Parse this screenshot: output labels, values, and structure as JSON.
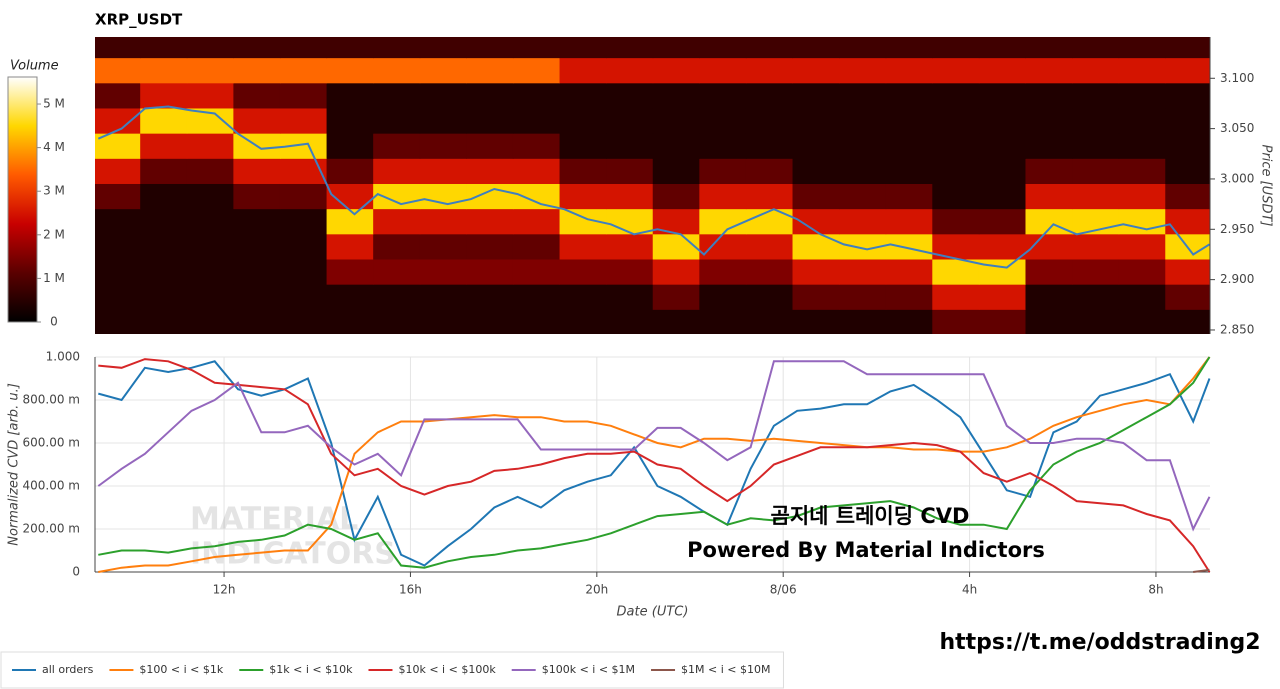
{
  "chart_data": [
    {
      "type": "heatmap",
      "title": "XRP_USDT",
      "y_label": "Price [USDT]",
      "colorbar_label": "Volume",
      "xlim": [
        9.23,
        33.16
      ],
      "ylim": [
        2.846,
        3.141
      ],
      "yticks": [
        {
          "value": 2.85,
          "label": "2.850"
        },
        {
          "value": 2.9,
          "label": "2.900"
        },
        {
          "value": 2.95,
          "label": "2.950"
        },
        {
          "value": 3.0,
          "label": "3.000"
        },
        {
          "value": 3.05,
          "label": "3.050"
        },
        {
          "value": 3.1,
          "label": "3.100"
        }
      ],
      "zlim": [
        0,
        5620000
      ],
      "zticks": [
        0,
        {
          "value": 1000000,
          "label": "1 M"
        },
        {
          "value": 2000000,
          "label": "2 M"
        },
        {
          "value": 3000000,
          "label": "3 M"
        },
        {
          "value": 4000000,
          "label": "4 M"
        },
        {
          "value": 5000000,
          "label": "5 M"
        }
      ],
      "colorscale": [
        "#000000",
        "#5a0000",
        "#c80000",
        "#ff5a00",
        "#ffd700",
        "#ffffff"
      ],
      "x": [
        9.7,
        10.7,
        11.7,
        12.7,
        13.7,
        14.7,
        15.7,
        16.7,
        17.7,
        18.7,
        19.7,
        20.7,
        21.7,
        22.7,
        23.7,
        24.7,
        25.7,
        26.7,
        27.7,
        28.7,
        29.7,
        30.7,
        31.7,
        32.7
      ],
      "y": [
        2.858,
        2.883,
        2.908,
        2.933,
        2.958,
        2.983,
        3.008,
        3.033,
        3.058,
        3.083,
        3.108,
        3.133
      ],
      "z": [
        [
          400000,
          400000,
          400000,
          400000,
          400000,
          400000,
          400000,
          400000,
          400000,
          400000,
          400000,
          400000,
          400000,
          400000,
          400000,
          400000,
          400000,
          400000,
          1200000,
          1200000,
          400000,
          400000,
          400000,
          400000
        ],
        [
          400000,
          400000,
          400000,
          400000,
          400000,
          400000,
          400000,
          400000,
          400000,
          400000,
          400000,
          400000,
          1200000,
          400000,
          400000,
          1200000,
          1200000,
          1200000,
          2500000,
          2500000,
          400000,
          400000,
          400000,
          1200000
        ],
        [
          400000,
          400000,
          400000,
          400000,
          400000,
          1500000,
          1500000,
          1500000,
          1500000,
          1500000,
          1500000,
          1500000,
          2500000,
          1500000,
          1500000,
          2500000,
          2500000,
          2500000,
          4500000,
          4500000,
          1500000,
          1500000,
          1500000,
          2500000
        ],
        [
          400000,
          400000,
          400000,
          400000,
          400000,
          2500000,
          1200000,
          1200000,
          1200000,
          1200000,
          2500000,
          2500000,
          4500000,
          2500000,
          2500000,
          4500000,
          4500000,
          4500000,
          2500000,
          2500000,
          2500000,
          2500000,
          2500000,
          4500000
        ],
        [
          400000,
          400000,
          400000,
          400000,
          400000,
          4500000,
          2500000,
          2500000,
          2500000,
          2500000,
          4500000,
          4500000,
          2500000,
          4500000,
          4500000,
          2500000,
          2500000,
          2500000,
          1200000,
          1200000,
          4500000,
          4500000,
          4500000,
          2500000
        ],
        [
          1200000,
          400000,
          400000,
          1200000,
          1200000,
          2500000,
          4500000,
          4500000,
          4500000,
          4500000,
          2500000,
          2500000,
          1200000,
          2500000,
          2500000,
          1200000,
          1200000,
          1200000,
          400000,
          400000,
          2500000,
          2500000,
          2500000,
          1200000
        ],
        [
          2500000,
          1200000,
          1200000,
          2500000,
          2500000,
          1200000,
          2500000,
          2500000,
          2500000,
          2500000,
          1200000,
          1200000,
          400000,
          1200000,
          1200000,
          400000,
          400000,
          400000,
          400000,
          400000,
          1200000,
          1200000,
          1200000,
          400000
        ],
        [
          4500000,
          2500000,
          2500000,
          4500000,
          4500000,
          400000,
          1200000,
          1200000,
          1200000,
          1200000,
          400000,
          400000,
          400000,
          400000,
          400000,
          400000,
          400000,
          400000,
          400000,
          400000,
          400000,
          400000,
          400000,
          400000
        ],
        [
          2500000,
          4500000,
          4500000,
          2500000,
          2500000,
          400000,
          400000,
          400000,
          400000,
          400000,
          400000,
          400000,
          400000,
          400000,
          400000,
          400000,
          400000,
          400000,
          400000,
          400000,
          400000,
          400000,
          400000,
          400000
        ],
        [
          1200000,
          2500000,
          2500000,
          1200000,
          1200000,
          400000,
          400000,
          400000,
          400000,
          400000,
          400000,
          400000,
          400000,
          400000,
          400000,
          400000,
          400000,
          400000,
          400000,
          400000,
          400000,
          400000,
          400000,
          400000
        ],
        [
          3500000,
          3500000,
          3500000,
          3500000,
          3500000,
          3500000,
          3500000,
          3500000,
          3500000,
          3500000,
          2500000,
          2500000,
          2500000,
          2500000,
          2500000,
          2500000,
          2500000,
          2500000,
          2500000,
          2500000,
          2500000,
          2500000,
          2500000,
          2500000
        ],
        [
          800000,
          800000,
          800000,
          800000,
          800000,
          800000,
          800000,
          800000,
          800000,
          800000,
          800000,
          800000,
          800000,
          800000,
          800000,
          800000,
          800000,
          800000,
          800000,
          800000,
          800000,
          800000,
          800000,
          800000
        ]
      ],
      "line": {
        "color": "#3f7fbf",
        "x": [
          9.3,
          9.8,
          10.3,
          10.8,
          11.3,
          11.8,
          12.3,
          12.8,
          13.3,
          13.8,
          14.3,
          14.8,
          15.3,
          15.8,
          16.3,
          16.8,
          17.3,
          17.8,
          18.3,
          18.8,
          19.3,
          19.8,
          20.3,
          20.8,
          21.3,
          21.8,
          22.3,
          22.8,
          23.3,
          23.8,
          24.3,
          24.8,
          25.3,
          25.8,
          26.3,
          26.8,
          27.3,
          27.8,
          28.3,
          28.8,
          29.3,
          29.8,
          30.3,
          30.8,
          31.3,
          31.8,
          32.3,
          32.8,
          33.15
        ],
        "values": [
          3.04,
          3.05,
          3.07,
          3.072,
          3.068,
          3.065,
          3.045,
          3.03,
          3.032,
          3.035,
          2.985,
          2.965,
          2.985,
          2.975,
          2.98,
          2.975,
          2.98,
          2.99,
          2.985,
          2.975,
          2.97,
          2.96,
          2.955,
          2.945,
          2.95,
          2.945,
          2.925,
          2.95,
          2.96,
          2.97,
          2.96,
          2.945,
          2.935,
          2.93,
          2.935,
          2.93,
          2.925,
          2.92,
          2.915,
          2.912,
          2.93,
          2.955,
          2.945,
          2.95,
          2.955,
          2.95,
          2.955,
          2.925,
          2.935
        ]
      }
    },
    {
      "type": "line",
      "x_label": "Date (UTC)",
      "y_label": "Normalized CVD [arb. u.]",
      "xlim": [
        9.23,
        33.16
      ],
      "ylim": [
        0,
        1
      ],
      "xticks": [
        {
          "value": 12,
          "label": "12h"
        },
        {
          "value": 16,
          "label": "16h"
        },
        {
          "value": 20,
          "label": "20h"
        },
        {
          "value": 24,
          "label": "8/06"
        },
        {
          "value": 28,
          "label": "4h"
        },
        {
          "value": 32,
          "label": "8h"
        }
      ],
      "yticks": [
        0,
        {
          "value": 0.2,
          "label": "200.00 m"
        },
        {
          "value": 0.4,
          "label": "400.00 m"
        },
        {
          "value": 0.6,
          "label": "600.00 m"
        },
        {
          "value": 0.8,
          "label": "800.00 m"
        },
        {
          "value": 1,
          "label": "1.000"
        }
      ],
      "grid": true,
      "x": [
        9.3,
        9.8,
        10.3,
        10.8,
        11.3,
        11.8,
        12.3,
        12.8,
        13.3,
        13.8,
        14.3,
        14.8,
        15.3,
        15.8,
        16.3,
        16.8,
        17.3,
        17.8,
        18.3,
        18.8,
        19.3,
        19.8,
        20.3,
        20.8,
        21.3,
        21.8,
        22.3,
        22.8,
        23.3,
        23.8,
        24.3,
        24.8,
        25.3,
        25.8,
        26.3,
        26.8,
        27.3,
        27.8,
        28.3,
        28.8,
        29.3,
        29.8,
        30.3,
        30.8,
        31.3,
        31.8,
        32.3,
        32.8,
        33.15
      ],
      "series": [
        {
          "name": "all orders",
          "color": "#1f77b4",
          "values": [
            0.83,
            0.8,
            0.95,
            0.93,
            0.95,
            0.98,
            0.85,
            0.82,
            0.85,
            0.9,
            0.6,
            0.15,
            0.35,
            0.08,
            0.03,
            0.12,
            0.2,
            0.3,
            0.35,
            0.3,
            0.38,
            0.42,
            0.45,
            0.58,
            0.4,
            0.35,
            0.28,
            0.22,
            0.48,
            0.68,
            0.75,
            0.76,
            0.78,
            0.78,
            0.84,
            0.87,
            0.8,
            0.72,
            0.55,
            0.38,
            0.35,
            0.65,
            0.7,
            0.82,
            0.85,
            0.88,
            0.92,
            0.7,
            0.9
          ]
        },
        {
          "name": "$100 < i < $1k",
          "color": "#ff7f0e",
          "values": [
            0.0,
            0.02,
            0.03,
            0.03,
            0.05,
            0.07,
            0.08,
            0.09,
            0.1,
            0.1,
            0.22,
            0.55,
            0.65,
            0.7,
            0.7,
            0.71,
            0.72,
            0.73,
            0.72,
            0.72,
            0.7,
            0.7,
            0.68,
            0.64,
            0.6,
            0.58,
            0.62,
            0.62,
            0.61,
            0.62,
            0.61,
            0.6,
            0.59,
            0.58,
            0.58,
            0.57,
            0.57,
            0.56,
            0.56,
            0.58,
            0.62,
            0.68,
            0.72,
            0.75,
            0.78,
            0.8,
            0.78,
            0.9,
            1.0
          ]
        },
        {
          "name": "$1k < i < $10k",
          "color": "#2ca02c",
          "values": [
            0.08,
            0.1,
            0.1,
            0.09,
            0.11,
            0.12,
            0.14,
            0.15,
            0.17,
            0.22,
            0.2,
            0.15,
            0.18,
            0.03,
            0.02,
            0.05,
            0.07,
            0.08,
            0.1,
            0.11,
            0.13,
            0.15,
            0.18,
            0.22,
            0.26,
            0.27,
            0.28,
            0.22,
            0.25,
            0.24,
            0.26,
            0.3,
            0.31,
            0.32,
            0.33,
            0.3,
            0.25,
            0.22,
            0.22,
            0.2,
            0.38,
            0.5,
            0.56,
            0.6,
            0.66,
            0.72,
            0.78,
            0.88,
            1.0
          ]
        },
        {
          "name": "$10k < i < $100k",
          "color": "#d62728",
          "values": [
            0.96,
            0.95,
            0.99,
            0.98,
            0.94,
            0.88,
            0.87,
            0.86,
            0.85,
            0.78,
            0.55,
            0.45,
            0.48,
            0.4,
            0.36,
            0.4,
            0.42,
            0.47,
            0.48,
            0.5,
            0.53,
            0.55,
            0.55,
            0.56,
            0.5,
            0.48,
            0.4,
            0.33,
            0.4,
            0.5,
            0.54,
            0.58,
            0.58,
            0.58,
            0.59,
            0.6,
            0.59,
            0.56,
            0.46,
            0.42,
            0.46,
            0.4,
            0.33,
            0.32,
            0.31,
            0.27,
            0.24,
            0.12,
            0.0
          ]
        },
        {
          "name": "$100k < i < $1M",
          "color": "#9467bd",
          "values": [
            0.4,
            0.48,
            0.55,
            0.65,
            0.75,
            0.8,
            0.88,
            0.65,
            0.65,
            0.68,
            0.58,
            0.5,
            0.55,
            0.45,
            0.71,
            0.71,
            0.71,
            0.71,
            0.71,
            0.57,
            0.57,
            0.57,
            0.57,
            0.57,
            0.67,
            0.67,
            0.6,
            0.52,
            0.58,
            0.98,
            0.98,
            0.98,
            0.98,
            0.92,
            0.92,
            0.92,
            0.92,
            0.92,
            0.92,
            0.68,
            0.6,
            0.6,
            0.62,
            0.62,
            0.6,
            0.52,
            0.52,
            0.2,
            0.35
          ]
        },
        {
          "name": "$1M < i < $10M",
          "color": "#8c564b",
          "values": [
            null,
            null,
            null,
            null,
            null,
            null,
            null,
            null,
            null,
            null,
            null,
            null,
            null,
            null,
            null,
            null,
            null,
            null,
            null,
            null,
            null,
            null,
            null,
            null,
            null,
            null,
            null,
            null,
            null,
            null,
            null,
            null,
            null,
            null,
            null,
            null,
            null,
            null,
            null,
            null,
            null,
            null,
            null,
            null,
            null,
            null,
            null,
            0.0,
            0.01
          ]
        }
      ],
      "annotations": [
        "곰지네 트레이딩 CVD",
        "Powered By Material Indictors",
        "https://t.me/oddstrading2"
      ],
      "watermark": [
        "MATERIAL",
        "INDICATORS"
      ]
    }
  ]
}
